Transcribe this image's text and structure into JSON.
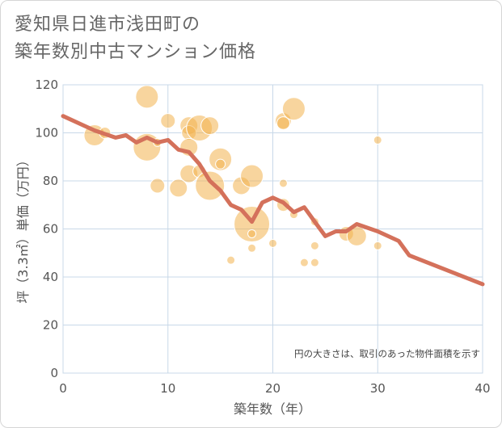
{
  "title": {
    "line1": "愛知県日進市浅田町の",
    "line2": "築年数別中古マンション価格"
  },
  "colors": {
    "bubble": "#f2b24f",
    "line": "#d4715b",
    "grid": "#c8d8e8",
    "background": "#ffffff"
  },
  "chart_data": {
    "type": "scatter",
    "title": "愛知県日進市浅田町の築年数別中古マンション価格",
    "xlabel": "築年数（年）",
    "ylabel": "坪（3.3㎡）単価（万円）",
    "xlim": [
      0,
      40
    ],
    "ylim": [
      0,
      120
    ],
    "xticks": [
      0,
      10,
      20,
      30,
      40
    ],
    "yticks": [
      0,
      20,
      40,
      60,
      80,
      100,
      120
    ],
    "grid": true,
    "note": "円の大きさは、取引のあった物件面積を示す",
    "bubbles": [
      {
        "x": 3,
        "y": 99,
        "r": 13
      },
      {
        "x": 4,
        "y": 100,
        "r": 7
      },
      {
        "x": 8,
        "y": 115,
        "r": 14
      },
      {
        "x": 8,
        "y": 94,
        "r": 17
      },
      {
        "x": 9,
        "y": 78,
        "r": 9
      },
      {
        "x": 9,
        "y": 96,
        "r": 5
      },
      {
        "x": 10,
        "y": 105,
        "r": 9
      },
      {
        "x": 11,
        "y": 77,
        "r": 11
      },
      {
        "x": 12,
        "y": 103,
        "r": 11
      },
      {
        "x": 12,
        "y": 100,
        "r": 9
      },
      {
        "x": 12,
        "y": 94,
        "r": 11
      },
      {
        "x": 12,
        "y": 83,
        "r": 11
      },
      {
        "x": 13,
        "y": 102,
        "r": 16
      },
      {
        "x": 13,
        "y": 84,
        "r": 8
      },
      {
        "x": 14,
        "y": 103,
        "r": 11
      },
      {
        "x": 14,
        "y": 78,
        "r": 18
      },
      {
        "x": 15,
        "y": 89,
        "r": 14
      },
      {
        "x": 15,
        "y": 87,
        "r": 6
      },
      {
        "x": 16,
        "y": 47,
        "r": 5
      },
      {
        "x": 17,
        "y": 78,
        "r": 11
      },
      {
        "x": 18,
        "y": 82,
        "r": 14
      },
      {
        "x": 18,
        "y": 62,
        "r": 22
      },
      {
        "x": 18,
        "y": 58,
        "r": 5
      },
      {
        "x": 18,
        "y": 52,
        "r": 5
      },
      {
        "x": 20,
        "y": 54,
        "r": 5
      },
      {
        "x": 21,
        "y": 105,
        "r": 10
      },
      {
        "x": 21,
        "y": 104,
        "r": 8
      },
      {
        "x": 21,
        "y": 79,
        "r": 5
      },
      {
        "x": 21,
        "y": 70,
        "r": 8
      },
      {
        "x": 22,
        "y": 110,
        "r": 14
      },
      {
        "x": 22,
        "y": 66,
        "r": 5
      },
      {
        "x": 23,
        "y": 46,
        "r": 5
      },
      {
        "x": 24,
        "y": 63,
        "r": 5
      },
      {
        "x": 24,
        "y": 53,
        "r": 5
      },
      {
        "x": 24,
        "y": 46,
        "r": 5
      },
      {
        "x": 27,
        "y": 58,
        "r": 9
      },
      {
        "x": 28,
        "y": 57,
        "r": 12
      },
      {
        "x": 30,
        "y": 97,
        "r": 5
      },
      {
        "x": 30,
        "y": 53,
        "r": 5
      }
    ],
    "series": [
      {
        "x": [
          0,
          2,
          3,
          5,
          6,
          7,
          8,
          9,
          10,
          11,
          12,
          13,
          14,
          15,
          16,
          17,
          18,
          19,
          20,
          21,
          22,
          23,
          24,
          25,
          26,
          27,
          28,
          30,
          32,
          33,
          40
        ],
        "y": [
          107,
          103,
          101,
          98,
          99,
          96,
          98,
          96,
          97,
          93,
          92,
          87,
          80,
          76,
          70,
          68,
          63,
          71,
          73,
          71,
          67,
          69,
          63,
          57,
          59,
          59,
          62,
          59,
          55,
          49,
          37
        ]
      }
    ]
  }
}
